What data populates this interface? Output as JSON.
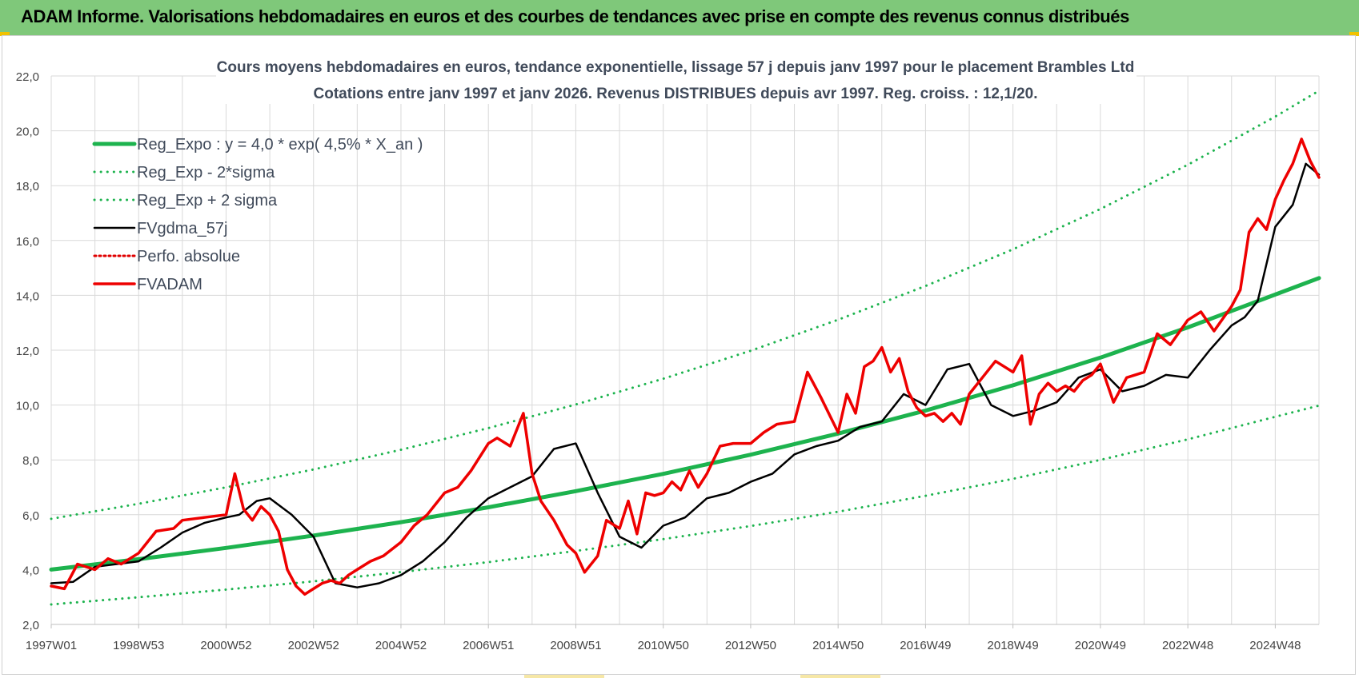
{
  "header": {
    "title": "ADAM Informe. Valorisations hebdomadaires en euros et des courbes de tendances avec prise en compte des revenus connus distribués",
    "banner_color": "#7fc87a"
  },
  "chart_data": {
    "type": "line",
    "title": "Cours moyens hebdomadaires en euros, tendance exponentielle, lissage 57 j depuis janv 1997 pour le placement Brambles Ltd",
    "subtitle": "Cotations entre janv 1997 et janv 2026. Revenus DISTRIBUES depuis avr 1997.  Reg. croiss. : 12,1/20.",
    "xlabel": "",
    "ylabel": "",
    "x_range": [
      1997.0,
      2026.0
    ],
    "ylim": [
      2.0,
      22.0
    ],
    "yticks": [
      2.0,
      4.0,
      6.0,
      8.0,
      10.0,
      12.0,
      14.0,
      16.0,
      18.0,
      20.0,
      22.0
    ],
    "ytick_labels": [
      "2,0",
      "4,0",
      "6,0",
      "8,0",
      "10,0",
      "12,0",
      "14,0",
      "16,0",
      "18,0",
      "20,0",
      "22,0"
    ],
    "xticks": [
      {
        "label": "1997W01",
        "x": 1997.0
      },
      {
        "label": "1998W53",
        "x": 1999.0
      },
      {
        "label": "2000W52",
        "x": 2001.0
      },
      {
        "label": "2002W52",
        "x": 2003.0
      },
      {
        "label": "2004W52",
        "x": 2005.0
      },
      {
        "label": "2006W51",
        "x": 2007.0
      },
      {
        "label": "2008W51",
        "x": 2009.0
      },
      {
        "label": "2010W50",
        "x": 2011.0
      },
      {
        "label": "2012W50",
        "x": 2013.0
      },
      {
        "label": "2014W50",
        "x": 2015.0
      },
      {
        "label": "2016W49",
        "x": 2017.0
      },
      {
        "label": "2018W49",
        "x": 2019.0
      },
      {
        "label": "2020W49",
        "x": 2021.0
      },
      {
        "label": "2022W48",
        "x": 2023.0
      },
      {
        "label": "2024W48",
        "x": 2025.0
      }
    ],
    "grid": true,
    "legend_position": "top-left",
    "series": [
      {
        "name": "Reg_Expo : y = 4,0 * exp( 4,5% *  X_an )",
        "color": "#1db34e",
        "style": "solid",
        "width": 5,
        "x": [
          1997,
          1999,
          2001,
          2003,
          2005,
          2007,
          2009,
          2011,
          2013,
          2015,
          2017,
          2019,
          2021,
          2023,
          2025,
          2026
        ],
        "values": [
          4.0,
          4.38,
          4.79,
          5.24,
          5.73,
          6.27,
          6.86,
          7.49,
          8.19,
          8.96,
          9.8,
          10.72,
          11.73,
          12.83,
          14.03,
          14.63
        ]
      },
      {
        "name": "Reg_Exp - 2*sigma",
        "color": "#1db34e",
        "style": "dotted",
        "width": 3,
        "x": [
          1997,
          1999,
          2001,
          2003,
          2005,
          2007,
          2009,
          2011,
          2013,
          2015,
          2017,
          2019,
          2021,
          2023,
          2025,
          2026
        ],
        "values": [
          2.73,
          2.99,
          3.27,
          3.57,
          3.91,
          4.27,
          4.68,
          5.11,
          5.59,
          6.11,
          6.69,
          7.31,
          8.0,
          8.75,
          9.57,
          9.98
        ]
      },
      {
        "name": "Reg_Exp + 2 sigma",
        "color": "#1db34e",
        "style": "dotted",
        "width": 3,
        "x": [
          1997,
          1999,
          2001,
          2003,
          2005,
          2007,
          2009,
          2011,
          2013,
          2015,
          2017,
          2019,
          2021,
          2023,
          2025,
          2026
        ],
        "values": [
          5.85,
          6.4,
          7.0,
          7.65,
          8.37,
          9.16,
          10.02,
          10.96,
          11.98,
          13.11,
          14.34,
          15.68,
          17.15,
          18.76,
          20.52,
          21.46
        ]
      },
      {
        "name": "FVgdma_57j",
        "color": "#000000",
        "style": "solid",
        "width": 2.5,
        "x": [
          1997.0,
          1997.5,
          1998.0,
          1998.5,
          1999.0,
          1999.5,
          2000.0,
          2000.5,
          2001.0,
          2001.3,
          2001.7,
          2002.0,
          2002.5,
          2003.0,
          2003.5,
          2004.0,
          2004.5,
          2005.0,
          2005.5,
          2006.0,
          2006.5,
          2007.0,
          2007.5,
          2008.0,
          2008.5,
          2009.0,
          2009.5,
          2010.0,
          2010.5,
          2011.0,
          2011.5,
          2012.0,
          2012.5,
          2013.0,
          2013.5,
          2014.0,
          2014.5,
          2015.0,
          2015.5,
          2016.0,
          2016.5,
          2017.0,
          2017.5,
          2018.0,
          2018.5,
          2019.0,
          2019.5,
          2020.0,
          2020.5,
          2021.0,
          2021.5,
          2022.0,
          2022.5,
          2023.0,
          2023.5,
          2024.0,
          2024.3,
          2024.6,
          2025.0,
          2025.4,
          2025.7,
          2026.0
        ],
        "values": [
          3.5,
          3.55,
          4.1,
          4.2,
          4.3,
          4.8,
          5.35,
          5.7,
          5.9,
          6.0,
          6.5,
          6.6,
          6.0,
          5.2,
          3.5,
          3.35,
          3.5,
          3.8,
          4.3,
          5.0,
          5.9,
          6.6,
          7.0,
          7.4,
          8.4,
          8.6,
          6.8,
          5.2,
          4.8,
          5.6,
          5.9,
          6.6,
          6.8,
          7.2,
          7.5,
          8.2,
          8.5,
          8.7,
          9.2,
          9.4,
          10.4,
          10.0,
          11.3,
          11.5,
          10.0,
          9.6,
          9.8,
          10.1,
          11.0,
          11.3,
          10.5,
          10.7,
          11.1,
          11.0,
          12.0,
          12.9,
          13.2,
          13.8,
          16.5,
          17.3,
          18.8,
          18.4
        ]
      },
      {
        "name": "Perfo. absolue",
        "color": "#e00000",
        "style": "dotted",
        "width": 2,
        "x": [],
        "values": []
      },
      {
        "name": "FVADAM",
        "color": "#ee0000",
        "style": "solid",
        "width": 3.5,
        "x": [
          1997.0,
          1997.3,
          1997.6,
          1998.0,
          1998.3,
          1998.6,
          1999.0,
          1999.4,
          1999.8,
          2000.0,
          2000.5,
          2001.0,
          2001.2,
          2001.4,
          2001.6,
          2001.8,
          2002.0,
          2002.2,
          2002.4,
          2002.6,
          2002.8,
          2003.0,
          2003.2,
          2003.4,
          2003.6,
          2003.8,
          2004.0,
          2004.3,
          2004.6,
          2005.0,
          2005.3,
          2005.6,
          2006.0,
          2006.3,
          2006.6,
          2007.0,
          2007.2,
          2007.5,
          2007.8,
          2008.0,
          2008.2,
          2008.5,
          2008.8,
          2009.0,
          2009.2,
          2009.5,
          2009.7,
          2010.0,
          2010.2,
          2010.4,
          2010.6,
          2010.8,
          2011.0,
          2011.2,
          2011.4,
          2011.6,
          2011.8,
          2012.0,
          2012.3,
          2012.6,
          2013.0,
          2013.3,
          2013.6,
          2014.0,
          2014.3,
          2014.6,
          2015.0,
          2015.2,
          2015.4,
          2015.6,
          2015.8,
          2016.0,
          2016.2,
          2016.4,
          2016.6,
          2016.8,
          2017.0,
          2017.2,
          2017.4,
          2017.6,
          2017.8,
          2018.0,
          2018.3,
          2018.6,
          2019.0,
          2019.2,
          2019.4,
          2019.6,
          2019.8,
          2020.0,
          2020.2,
          2020.4,
          2020.6,
          2020.8,
          2021.0,
          2021.3,
          2021.6,
          2022.0,
          2022.3,
          2022.6,
          2023.0,
          2023.3,
          2023.6,
          2024.0,
          2024.2,
          2024.4,
          2024.6,
          2024.8,
          2025.0,
          2025.2,
          2025.4,
          2025.6,
          2025.8,
          2026.0
        ],
        "values": [
          3.4,
          3.3,
          4.2,
          4.0,
          4.4,
          4.2,
          4.6,
          5.4,
          5.5,
          5.8,
          5.9,
          6.0,
          7.5,
          6.2,
          5.8,
          6.3,
          6.0,
          5.4,
          4.0,
          3.4,
          3.1,
          3.3,
          3.5,
          3.6,
          3.5,
          3.8,
          4.0,
          4.3,
          4.5,
          5.0,
          5.6,
          6.0,
          6.8,
          7.0,
          7.6,
          8.6,
          8.8,
          8.5,
          9.7,
          7.5,
          6.5,
          5.8,
          4.9,
          4.6,
          3.9,
          4.5,
          5.8,
          5.5,
          6.5,
          5.3,
          6.8,
          6.7,
          6.8,
          7.2,
          6.9,
          7.6,
          7.0,
          7.5,
          8.5,
          8.6,
          8.6,
          9.0,
          9.3,
          9.4,
          11.2,
          10.3,
          9.0,
          10.4,
          9.7,
          11.4,
          11.6,
          12.1,
          11.2,
          11.7,
          10.5,
          9.9,
          9.6,
          9.7,
          9.4,
          9.7,
          9.3,
          10.4,
          11.0,
          11.6,
          11.2,
          11.8,
          9.3,
          10.4,
          10.8,
          10.5,
          10.7,
          10.5,
          10.9,
          11.1,
          11.5,
          10.1,
          11.0,
          11.2,
          12.6,
          12.2,
          13.1,
          13.4,
          12.7,
          13.6,
          14.2,
          16.3,
          16.8,
          16.4,
          17.5,
          18.2,
          18.8,
          19.7,
          18.9,
          18.3
        ]
      }
    ]
  }
}
